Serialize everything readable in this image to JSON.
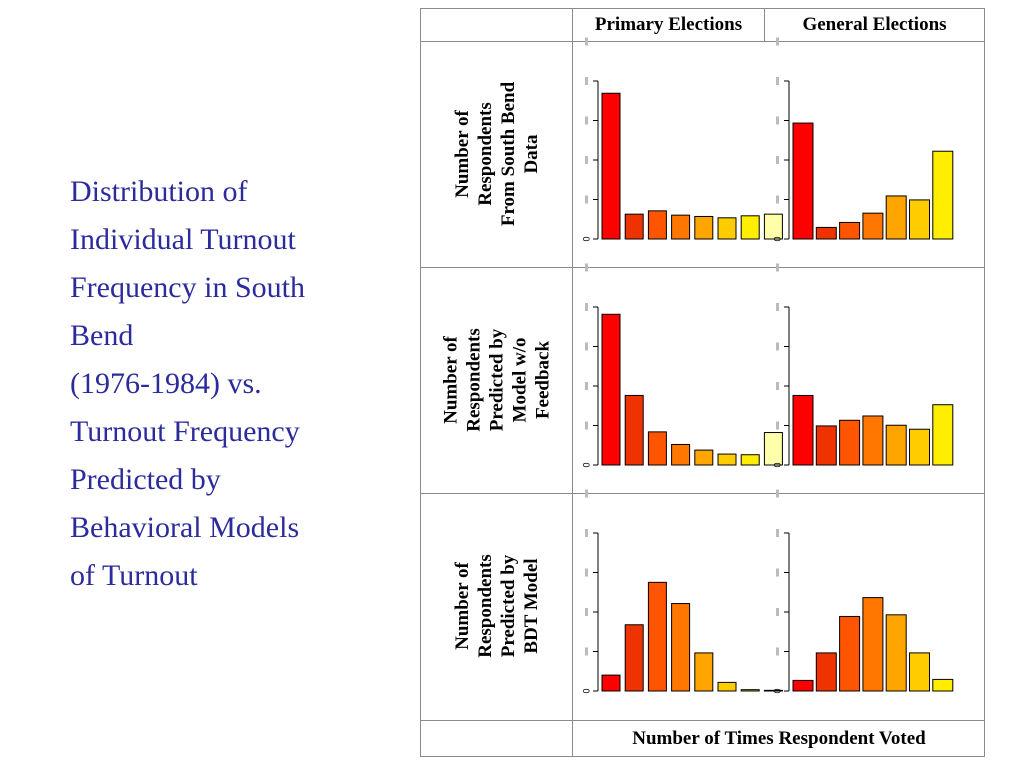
{
  "slide": {
    "title_lines": [
      "Distribution of",
      "Individual Turnout",
      "Frequency in South",
      "Bend",
      "(1976-1984) vs.",
      "Turnout Frequency",
      "Predicted by",
      "Behavioral Models",
      "of Turnout"
    ]
  },
  "table": {
    "col_headers": [
      "Primary Elections",
      "General Elections"
    ],
    "row_headers": [
      [
        "Number of",
        "Respondents",
        "From South Bend",
        "Data"
      ],
      [
        "Number of",
        "Respondents",
        "Predicted by",
        "Model w/o",
        "Feedback"
      ],
      [
        "Number of",
        "Respondents",
        "Predicted by",
        "BDT Model"
      ]
    ],
    "footer": "Number of Times Respondent Voted"
  },
  "colors": [
    "#ff0000",
    "#ee3300",
    "#ff5500",
    "#ff7700",
    "#ffa500",
    "#ffcc00",
    "#ffee00",
    "#ffffaa"
  ],
  "chart_data": [
    {
      "type": "bar",
      "panel": "south-bend-primary",
      "values": [
        440,
        75,
        85,
        72,
        68,
        64,
        70,
        75
      ],
      "y_tick_labels": [
        "0",
        "",
        "",
        "",
        "",
        ""
      ],
      "ylim": [
        0,
        480
      ]
    },
    {
      "type": "bar",
      "panel": "south-bend-general",
      "values": [
        350,
        35,
        50,
        78,
        130,
        118,
        265
      ],
      "y_tick_labels": [
        "0",
        "",
        "",
        "",
        "",
        ""
      ],
      "ylim": [
        0,
        480
      ]
    },
    {
      "type": "bar",
      "panel": "no-feedback-primary",
      "values": [
        455,
        210,
        100,
        62,
        45,
        33,
        31,
        98
      ],
      "y_tick_labels": [
        "0",
        "",
        "",
        "",
        "",
        ""
      ],
      "ylim": [
        0,
        480
      ]
    },
    {
      "type": "bar",
      "panel": "no-feedback-general",
      "values": [
        210,
        118,
        135,
        148,
        120,
        108,
        182
      ],
      "y_tick_labels": [
        "0",
        "",
        "",
        "",
        "",
        ""
      ],
      "ylim": [
        0,
        480
      ]
    },
    {
      "type": "bar",
      "panel": "bdt-primary",
      "values": [
        48,
        200,
        328,
        264,
        115,
        26,
        4,
        2
      ],
      "y_tick_labels": [
        "0",
        "",
        "",
        "",
        "",
        ""
      ],
      "ylim": [
        0,
        480
      ]
    },
    {
      "type": "bar",
      "panel": "bdt-general",
      "values": [
        32,
        115,
        225,
        282,
        230,
        115,
        35
      ],
      "y_tick_labels": [
        "0",
        "",
        "",
        "",
        "",
        ""
      ],
      "ylim": [
        0,
        480
      ]
    }
  ]
}
